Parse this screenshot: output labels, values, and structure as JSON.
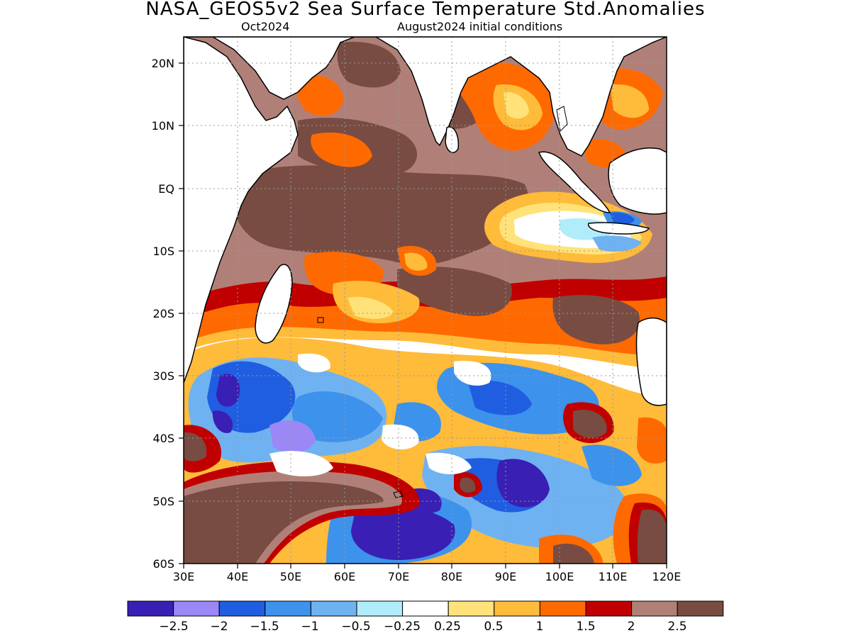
{
  "header": {
    "title": "NASA_GEOS5v2 Sea Surface Temperature Std.Anomalies",
    "forecast_month": "Oct2024",
    "initial_conditions": "August2024 initial conditions"
  },
  "map": {
    "lon_range": [
      30,
      120
    ],
    "lat_range": [
      -60,
      24
    ],
    "x_ticks": [
      "30E",
      "40E",
      "50E",
      "60E",
      "70E",
      "80E",
      "90E",
      "100E",
      "110E",
      "120E"
    ],
    "y_ticks": [
      "20N",
      "10N",
      "EQ",
      "10S",
      "20S",
      "30S",
      "40S",
      "50S",
      "60S"
    ],
    "grid": "dotted",
    "region": "Indian Ocean"
  },
  "colorbar": {
    "colors": [
      "#3a1fb4",
      "#9b87f5",
      "#1f5ee0",
      "#3d92ec",
      "#6fb2f2",
      "#b0ecfa",
      "#ffffff",
      "#ffe37a",
      "#ffbb3a",
      "#ff6a00",
      "#c00000",
      "#b08078",
      "#784c42"
    ],
    "labels": [
      "−2.5",
      "−2",
      "−1.5",
      "−1",
      "−0.5",
      "−0.25",
      "0.25",
      "0.5",
      "1",
      "1.5",
      "2",
      "2.5"
    ]
  }
}
